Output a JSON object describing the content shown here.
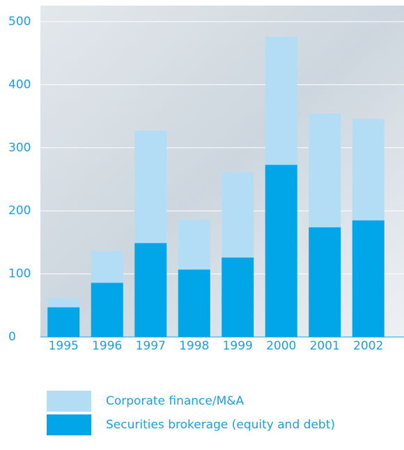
{
  "chart_data": {
    "type": "stacked_bar",
    "categories": [
      "1995",
      "1996",
      "1997",
      "1998",
      "1999",
      "2000",
      "2001",
      "2002"
    ],
    "series": [
      {
        "name": "Securities brokerage (equity and debt)",
        "color": "#00a6e8",
        "values": [
          47,
          86,
          149,
          107,
          126,
          273,
          174,
          185
        ]
      },
      {
        "name": "Corporate finance/M&A",
        "color": "#b3dcf5",
        "values": [
          15,
          50,
          178,
          79,
          135,
          203,
          180,
          161
        ]
      }
    ],
    "ylim": [
      0,
      500
    ],
    "yticks": [
      0,
      100,
      200,
      300,
      400,
      500
    ],
    "grid": true
  }
}
